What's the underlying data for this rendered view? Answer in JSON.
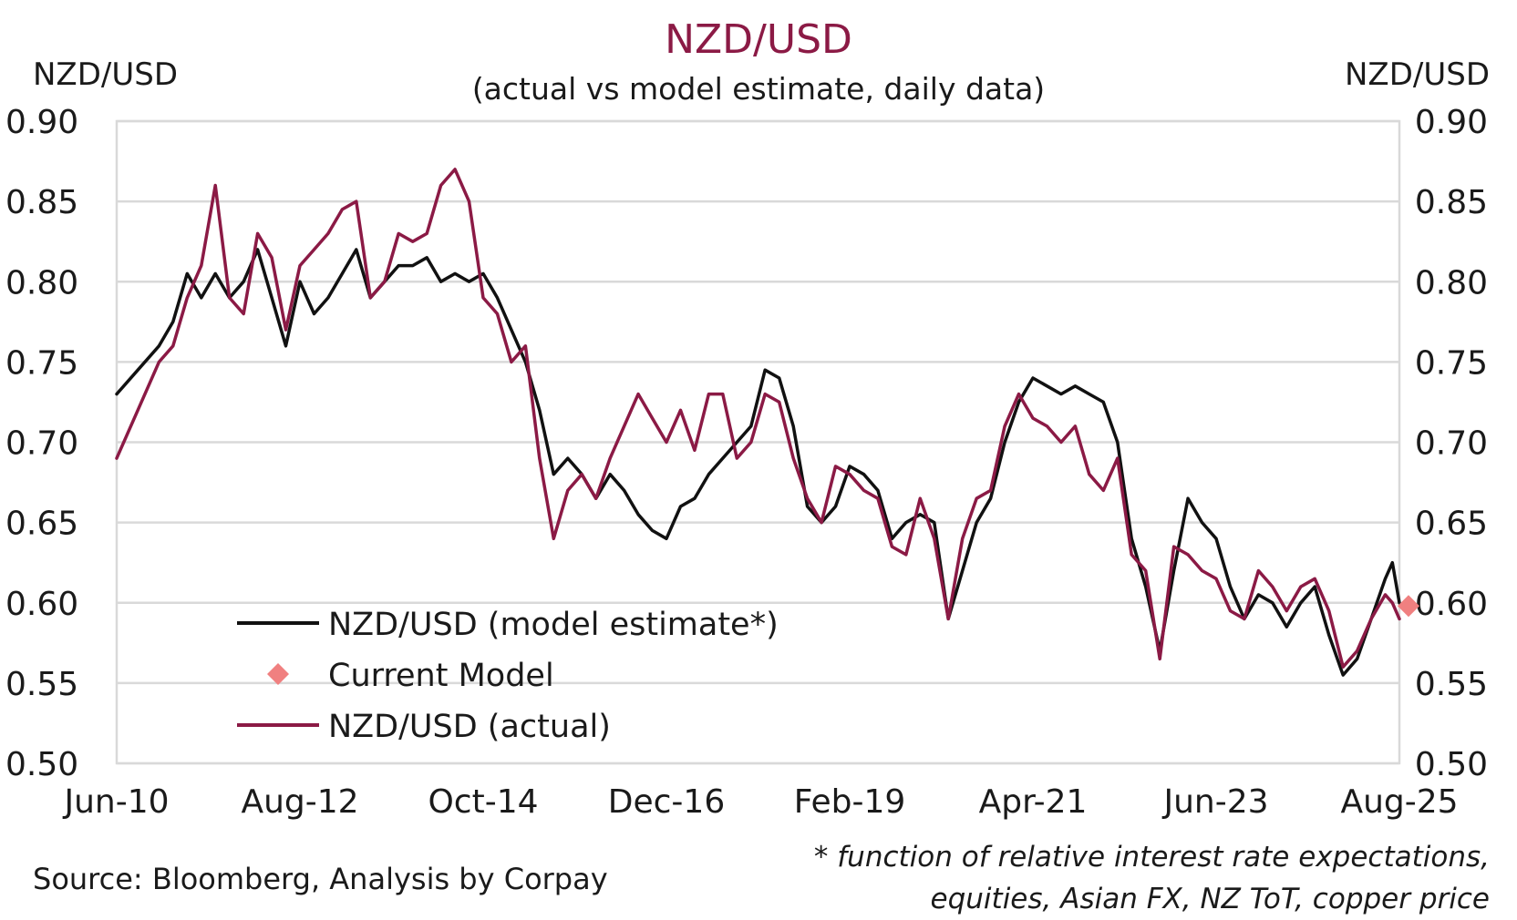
{
  "chart_data": {
    "type": "line",
    "title": "NZD/USD",
    "subtitle": "(actual vs model estimate, daily data)",
    "ylabel_left": "NZD/USD",
    "ylabel_right": "NZD/USD",
    "ylim": [
      0.5,
      0.9
    ],
    "yticks": [
      "0.90",
      "0.85",
      "0.80",
      "0.75",
      "0.70",
      "0.65",
      "0.60",
      "0.55",
      "0.50"
    ],
    "x_range": [
      "Jun-10",
      "Aug-25"
    ],
    "xticks": [
      "Jun-10",
      "Aug-12",
      "Oct-14",
      "Dec-16",
      "Feb-19",
      "Apr-21",
      "Jun-23",
      "Aug-25"
    ],
    "grid": "horizontal",
    "legend_position": "bottom-left",
    "colors": {
      "model": "#111111",
      "actual": "#8b1a45",
      "current": "#f08080",
      "grid": "#d9d9d9"
    },
    "series": [
      {
        "name": "NZD/USD (model estimate*)",
        "style": "line",
        "points": [
          [
            "2010-06",
            0.73
          ],
          [
            "2010-09",
            0.745
          ],
          [
            "2010-12",
            0.76
          ],
          [
            "2011-02",
            0.775
          ],
          [
            "2011-04",
            0.805
          ],
          [
            "2011-06",
            0.79
          ],
          [
            "2011-08",
            0.805
          ],
          [
            "2011-10",
            0.79
          ],
          [
            "2011-12",
            0.8
          ],
          [
            "2012-02",
            0.82
          ],
          [
            "2012-04",
            0.79
          ],
          [
            "2012-06",
            0.76
          ],
          [
            "2012-08",
            0.8
          ],
          [
            "2012-10",
            0.78
          ],
          [
            "2012-12",
            0.79
          ],
          [
            "2013-02",
            0.805
          ],
          [
            "2013-04",
            0.82
          ],
          [
            "2013-06",
            0.79
          ],
          [
            "2013-08",
            0.8
          ],
          [
            "2013-10",
            0.81
          ],
          [
            "2013-12",
            0.81
          ],
          [
            "2014-02",
            0.815
          ],
          [
            "2014-04",
            0.8
          ],
          [
            "2014-06",
            0.805
          ],
          [
            "2014-08",
            0.8
          ],
          [
            "2014-10",
            0.805
          ],
          [
            "2014-12",
            0.79
          ],
          [
            "2015-02",
            0.77
          ],
          [
            "2015-04",
            0.75
          ],
          [
            "2015-06",
            0.72
          ],
          [
            "2015-08",
            0.68
          ],
          [
            "2015-10",
            0.69
          ],
          [
            "2015-12",
            0.68
          ],
          [
            "2016-02",
            0.665
          ],
          [
            "2016-04",
            0.68
          ],
          [
            "2016-06",
            0.67
          ],
          [
            "2016-08",
            0.655
          ],
          [
            "2016-10",
            0.645
          ],
          [
            "2016-12",
            0.64
          ],
          [
            "2017-02",
            0.66
          ],
          [
            "2017-04",
            0.665
          ],
          [
            "2017-06",
            0.68
          ],
          [
            "2017-08",
            0.69
          ],
          [
            "2017-10",
            0.7
          ],
          [
            "2017-12",
            0.71
          ],
          [
            "2018-02",
            0.745
          ],
          [
            "2018-04",
            0.74
          ],
          [
            "2018-06",
            0.71
          ],
          [
            "2018-08",
            0.66
          ],
          [
            "2018-10",
            0.65
          ],
          [
            "2018-12",
            0.66
          ],
          [
            "2019-02",
            0.685
          ],
          [
            "2019-04",
            0.68
          ],
          [
            "2019-06",
            0.67
          ],
          [
            "2019-08",
            0.64
          ],
          [
            "2019-10",
            0.65
          ],
          [
            "2019-12",
            0.655
          ],
          [
            "2020-02",
            0.65
          ],
          [
            "2020-04",
            0.59
          ],
          [
            "2020-06",
            0.62
          ],
          [
            "2020-08",
            0.65
          ],
          [
            "2020-10",
            0.665
          ],
          [
            "2020-12",
            0.7
          ],
          [
            "2021-02",
            0.725
          ],
          [
            "2021-04",
            0.74
          ],
          [
            "2021-06",
            0.735
          ],
          [
            "2021-08",
            0.73
          ],
          [
            "2021-10",
            0.735
          ],
          [
            "2021-12",
            0.73
          ],
          [
            "2022-02",
            0.725
          ],
          [
            "2022-04",
            0.7
          ],
          [
            "2022-06",
            0.64
          ],
          [
            "2022-08",
            0.61
          ],
          [
            "2022-10",
            0.57
          ],
          [
            "2022-12",
            0.62
          ],
          [
            "2023-02",
            0.665
          ],
          [
            "2023-04",
            0.65
          ],
          [
            "2023-06",
            0.64
          ],
          [
            "2023-08",
            0.61
          ],
          [
            "2023-10",
            0.59
          ],
          [
            "2023-12",
            0.605
          ],
          [
            "2024-02",
            0.6
          ],
          [
            "2024-04",
            0.585
          ],
          [
            "2024-06",
            0.6
          ],
          [
            "2024-08",
            0.61
          ],
          [
            "2024-10",
            0.58
          ],
          [
            "2024-12",
            0.555
          ],
          [
            "2025-02",
            0.565
          ],
          [
            "2025-04",
            0.59
          ],
          [
            "2025-06",
            0.615
          ],
          [
            "2025-07",
            0.625
          ],
          [
            "2025-08",
            0.6
          ]
        ]
      },
      {
        "name": "Current Model",
        "style": "marker",
        "points": [
          [
            "2025-08",
            0.598
          ]
        ]
      },
      {
        "name": "NZD/USD (actual)",
        "style": "line",
        "points": [
          [
            "2010-06",
            0.69
          ],
          [
            "2010-09",
            0.72
          ],
          [
            "2010-12",
            0.75
          ],
          [
            "2011-02",
            0.76
          ],
          [
            "2011-04",
            0.79
          ],
          [
            "2011-06",
            0.81
          ],
          [
            "2011-08",
            0.86
          ],
          [
            "2011-10",
            0.79
          ],
          [
            "2011-12",
            0.78
          ],
          [
            "2012-02",
            0.83
          ],
          [
            "2012-04",
            0.815
          ],
          [
            "2012-06",
            0.77
          ],
          [
            "2012-08",
            0.81
          ],
          [
            "2012-10",
            0.82
          ],
          [
            "2012-12",
            0.83
          ],
          [
            "2013-02",
            0.845
          ],
          [
            "2013-04",
            0.85
          ],
          [
            "2013-06",
            0.79
          ],
          [
            "2013-08",
            0.8
          ],
          [
            "2013-10",
            0.83
          ],
          [
            "2013-12",
            0.825
          ],
          [
            "2014-02",
            0.83
          ],
          [
            "2014-04",
            0.86
          ],
          [
            "2014-06",
            0.87
          ],
          [
            "2014-08",
            0.85
          ],
          [
            "2014-10",
            0.79
          ],
          [
            "2014-12",
            0.78
          ],
          [
            "2015-02",
            0.75
          ],
          [
            "2015-04",
            0.76
          ],
          [
            "2015-06",
            0.69
          ],
          [
            "2015-08",
            0.64
          ],
          [
            "2015-10",
            0.67
          ],
          [
            "2015-12",
            0.68
          ],
          [
            "2016-02",
            0.665
          ],
          [
            "2016-04",
            0.69
          ],
          [
            "2016-06",
            0.71
          ],
          [
            "2016-08",
            0.73
          ],
          [
            "2016-10",
            0.715
          ],
          [
            "2016-12",
            0.7
          ],
          [
            "2017-02",
            0.72
          ],
          [
            "2017-04",
            0.695
          ],
          [
            "2017-06",
            0.73
          ],
          [
            "2017-08",
            0.73
          ],
          [
            "2017-10",
            0.69
          ],
          [
            "2017-12",
            0.7
          ],
          [
            "2018-02",
            0.73
          ],
          [
            "2018-04",
            0.725
          ],
          [
            "2018-06",
            0.69
          ],
          [
            "2018-08",
            0.665
          ],
          [
            "2018-10",
            0.65
          ],
          [
            "2018-12",
            0.685
          ],
          [
            "2019-02",
            0.68
          ],
          [
            "2019-04",
            0.67
          ],
          [
            "2019-06",
            0.665
          ],
          [
            "2019-08",
            0.635
          ],
          [
            "2019-10",
            0.63
          ],
          [
            "2019-12",
            0.665
          ],
          [
            "2020-02",
            0.64
          ],
          [
            "2020-04",
            0.59
          ],
          [
            "2020-06",
            0.64
          ],
          [
            "2020-08",
            0.665
          ],
          [
            "2020-10",
            0.67
          ],
          [
            "2020-12",
            0.71
          ],
          [
            "2021-02",
            0.73
          ],
          [
            "2021-04",
            0.715
          ],
          [
            "2021-06",
            0.71
          ],
          [
            "2021-08",
            0.7
          ],
          [
            "2021-10",
            0.71
          ],
          [
            "2021-12",
            0.68
          ],
          [
            "2022-02",
            0.67
          ],
          [
            "2022-04",
            0.69
          ],
          [
            "2022-06",
            0.63
          ],
          [
            "2022-08",
            0.62
          ],
          [
            "2022-10",
            0.565
          ],
          [
            "2022-12",
            0.635
          ],
          [
            "2023-02",
            0.63
          ],
          [
            "2023-04",
            0.62
          ],
          [
            "2023-06",
            0.615
          ],
          [
            "2023-08",
            0.595
          ],
          [
            "2023-10",
            0.59
          ],
          [
            "2023-12",
            0.62
          ],
          [
            "2024-02",
            0.61
          ],
          [
            "2024-04",
            0.595
          ],
          [
            "2024-06",
            0.61
          ],
          [
            "2024-08",
            0.615
          ],
          [
            "2024-10",
            0.595
          ],
          [
            "2024-12",
            0.56
          ],
          [
            "2025-02",
            0.57
          ],
          [
            "2025-04",
            0.59
          ],
          [
            "2025-06",
            0.605
          ],
          [
            "2025-07",
            0.6
          ],
          [
            "2025-08",
            0.59
          ]
        ]
      }
    ]
  },
  "source": "Source: Bloomberg, Analysis by Corpay",
  "footnote_lines": [
    "* function of relative interest rate expectations,",
    "equities, Asian FX, NZ ToT, copper price"
  ]
}
